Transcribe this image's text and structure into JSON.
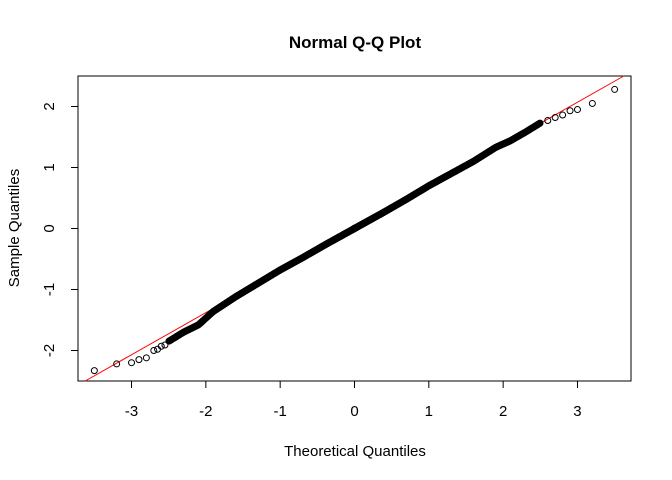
{
  "chart_data": {
    "type": "scatter",
    "title": "Normal Q-Q Plot",
    "xlabel": "Theoretical Quantiles",
    "ylabel": "Sample Quantiles",
    "xlim": [
      -3.72,
      3.72
    ],
    "ylim": [
      -2.5,
      2.5
    ],
    "xticks": [
      -3,
      -2,
      -1,
      0,
      1,
      2,
      3
    ],
    "yticks": [
      -2,
      -1,
      0,
      1,
      2
    ],
    "xtick_labels": [
      "-3",
      "-2",
      "-1",
      "0",
      "1",
      "2",
      "3"
    ],
    "ytick_labels": [
      "-2",
      "-1",
      "0",
      "1",
      "2"
    ],
    "grid": false,
    "reference_line": {
      "intercept": 0.0,
      "slope": 0.69,
      "color": "#ff0000"
    },
    "n_points": 1000,
    "tail_points": {
      "x": [
        -3.5,
        -3.2,
        -3.0,
        -2.9,
        -2.8,
        -2.7,
        -2.65,
        -2.6,
        -2.55,
        2.6,
        2.7,
        2.8,
        2.9,
        3.0,
        3.2,
        3.5
      ],
      "y": [
        -2.33,
        -2.22,
        -2.2,
        -2.15,
        -2.12,
        -2.0,
        -1.98,
        -1.93,
        -1.91,
        1.77,
        1.82,
        1.86,
        1.93,
        1.95,
        2.05,
        2.28
      ]
    },
    "body_curve": {
      "x": [
        -2.5,
        -2.3,
        -2.1,
        -1.9,
        -1.6,
        -1.3,
        -1.0,
        -0.7,
        -0.4,
        0.0,
        0.4,
        0.7,
        1.0,
        1.3,
        1.6,
        1.9,
        2.1,
        2.3,
        2.5
      ],
      "y": [
        -1.85,
        -1.7,
        -1.58,
        -1.36,
        -1.12,
        -0.9,
        -0.68,
        -0.48,
        -0.27,
        0.0,
        0.27,
        0.48,
        0.7,
        0.9,
        1.1,
        1.33,
        1.44,
        1.58,
        1.73
      ]
    },
    "point_color": "#000000"
  }
}
